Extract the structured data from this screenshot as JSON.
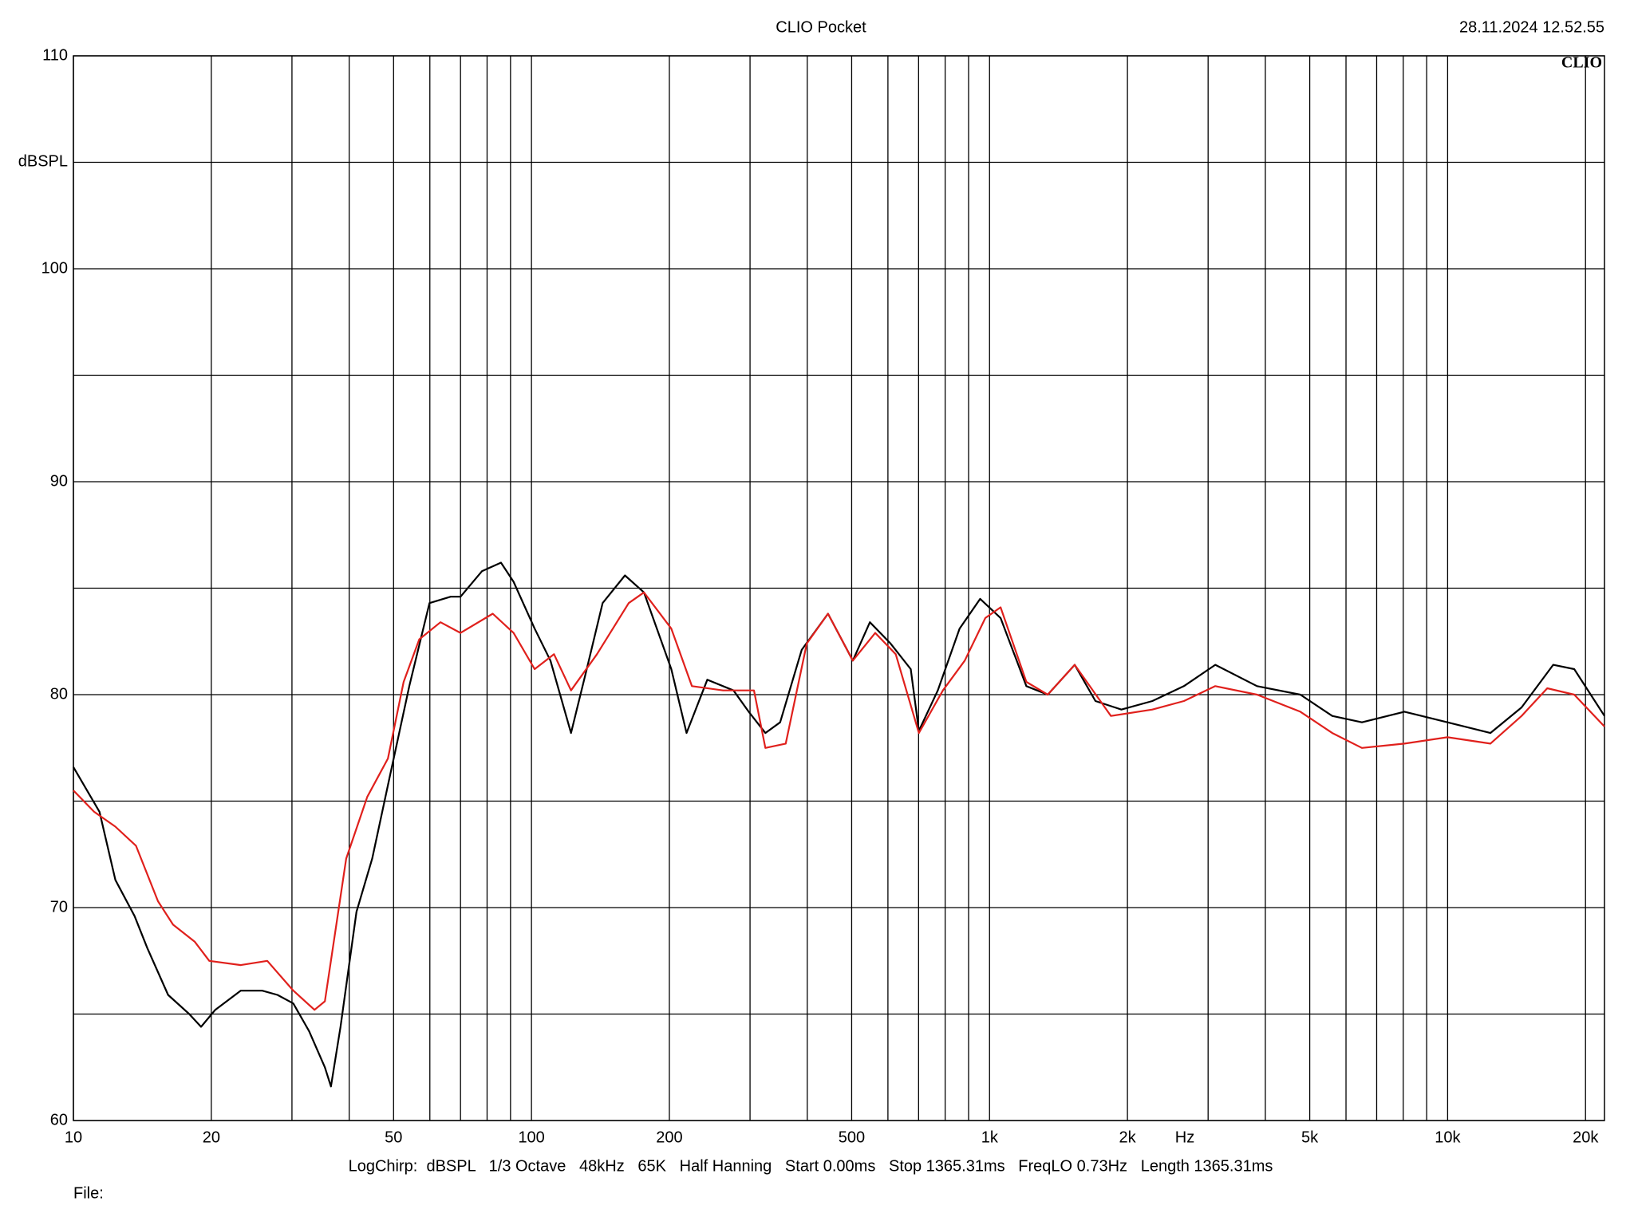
{
  "chart_data": {
    "type": "line",
    "title": "CLIO Pocket",
    "timestamp": "28.11.2024 12.52.55",
    "logo": "CLIO",
    "ylabel": "dBSPL",
    "xlabel": "Hz",
    "footer": "LogChirp:  dBSPL   1/3 Octave   48kHz   65K   Half Hanning   Start 0.00ms   Stop 1365.31ms   FreqLO 0.73Hz   Length 1365.31ms",
    "file_label": "File:",
    "xscale": "log",
    "grid": true,
    "xlim": [
      10,
      22000
    ],
    "ylim": [
      60,
      110
    ],
    "yticks": [
      60,
      70,
      80,
      90,
      100,
      110
    ],
    "yminor": [
      65,
      75,
      85,
      95,
      105
    ],
    "xticks": [
      10,
      20,
      50,
      100,
      200,
      500,
      {
        "value": 1000,
        "label": "1k"
      },
      {
        "value": 2000,
        "label": "2k"
      },
      {
        "value": 5000,
        "label": "5k"
      },
      {
        "value": 10000,
        "label": "10k"
      },
      {
        "value": 20000,
        "label": "20k"
      }
    ],
    "xminor": [
      30,
      40,
      60,
      70,
      80,
      90,
      300,
      400,
      600,
      700,
      800,
      900,
      3000,
      4000,
      6000,
      7000,
      8000,
      9000
    ],
    "series": [
      {
        "color": "#000000",
        "x": [
          10,
          11.4,
          12.35,
          13.6,
          14.5,
          16.1,
          17.9,
          19.0,
          20.4,
          23.2,
          25.8,
          27.9,
          30.2,
          32.7,
          35.4,
          36.5,
          38.3,
          41.5,
          44.9,
          49.1,
          54.1,
          59.9,
          66.6,
          70,
          78,
          85.8,
          91.4,
          101.6,
          110,
          122,
          132,
          143,
          160,
          176,
          202,
          218,
          242,
          276,
          298,
          324,
          349,
          389,
          444,
          503,
          548,
          608,
          673,
          701,
          771,
          860,
          954,
          1057,
          1203,
          1340,
          1534,
          1703,
          1940,
          2267,
          2657,
          3110,
          3836,
          4770,
          5600,
          6500,
          8050,
          9990,
          12400,
          14500,
          17000,
          18900,
          22000
        ],
        "values": [
          76.6,
          74.5,
          71.3,
          69.6,
          68.1,
          65.9,
          65.0,
          64.4,
          65.2,
          66.1,
          66.1,
          65.9,
          65.5,
          64.2,
          62.5,
          61.6,
          64.4,
          69.8,
          72.3,
          76.2,
          80.4,
          84.3,
          84.6,
          84.6,
          85.8,
          86.2,
          85.3,
          83.1,
          81.6,
          78.2,
          81.2,
          84.3,
          85.6,
          84.8,
          81.2,
          78.2,
          80.7,
          80.2,
          79.2,
          78.2,
          78.7,
          82.1,
          83.8,
          81.6,
          83.4,
          82.4,
          81.2,
          78.3,
          80.2,
          83.1,
          84.5,
          83.6,
          80.4,
          80.0,
          81.4,
          79.7,
          79.3,
          79.7,
          80.4,
          81.4,
          80.4,
          80.0,
          79.0,
          78.7,
          79.2,
          78.7,
          78.2,
          79.4,
          81.4,
          81.2,
          79.0
        ]
      },
      {
        "color": "#e0201c",
        "x": [
          10,
          11.1,
          12.35,
          13.7,
          15.3,
          16.5,
          18.4,
          19.8,
          23.2,
          26.5,
          30.2,
          33.6,
          35.4,
          39.4,
          43.8,
          48.6,
          52.6,
          56.9,
          63.3,
          70,
          82.3,
          91.4,
          101.6,
          112,
          122,
          139,
          163,
          176,
          202,
          224,
          262,
          306,
          324,
          359,
          399,
          444,
          503,
          563,
          624,
          701,
          791,
          883,
          979,
          1057,
          1203,
          1340,
          1534,
          1841,
          2267,
          2657,
          3110,
          3836,
          4770,
          5600,
          6500,
          8050,
          9990,
          12400,
          14500,
          16500,
          18900,
          22000
        ],
        "values": [
          75.5,
          74.5,
          73.8,
          72.9,
          70.3,
          69.2,
          68.4,
          67.5,
          67.3,
          67.5,
          66.1,
          65.2,
          65.6,
          72.3,
          75.2,
          77.0,
          80.6,
          82.6,
          83.4,
          82.9,
          83.8,
          82.9,
          81.2,
          81.9,
          80.2,
          81.9,
          84.3,
          84.8,
          83.1,
          80.4,
          80.2,
          80.2,
          77.5,
          77.7,
          82.4,
          83.8,
          81.6,
          82.9,
          81.9,
          78.2,
          80.2,
          81.6,
          83.6,
          84.1,
          80.6,
          80.0,
          81.4,
          79.0,
          79.3,
          79.7,
          80.4,
          80.0,
          79.2,
          78.2,
          77.5,
          77.7,
          78.0,
          77.7,
          79.0,
          80.3,
          80.0,
          78.5
        ]
      }
    ]
  }
}
